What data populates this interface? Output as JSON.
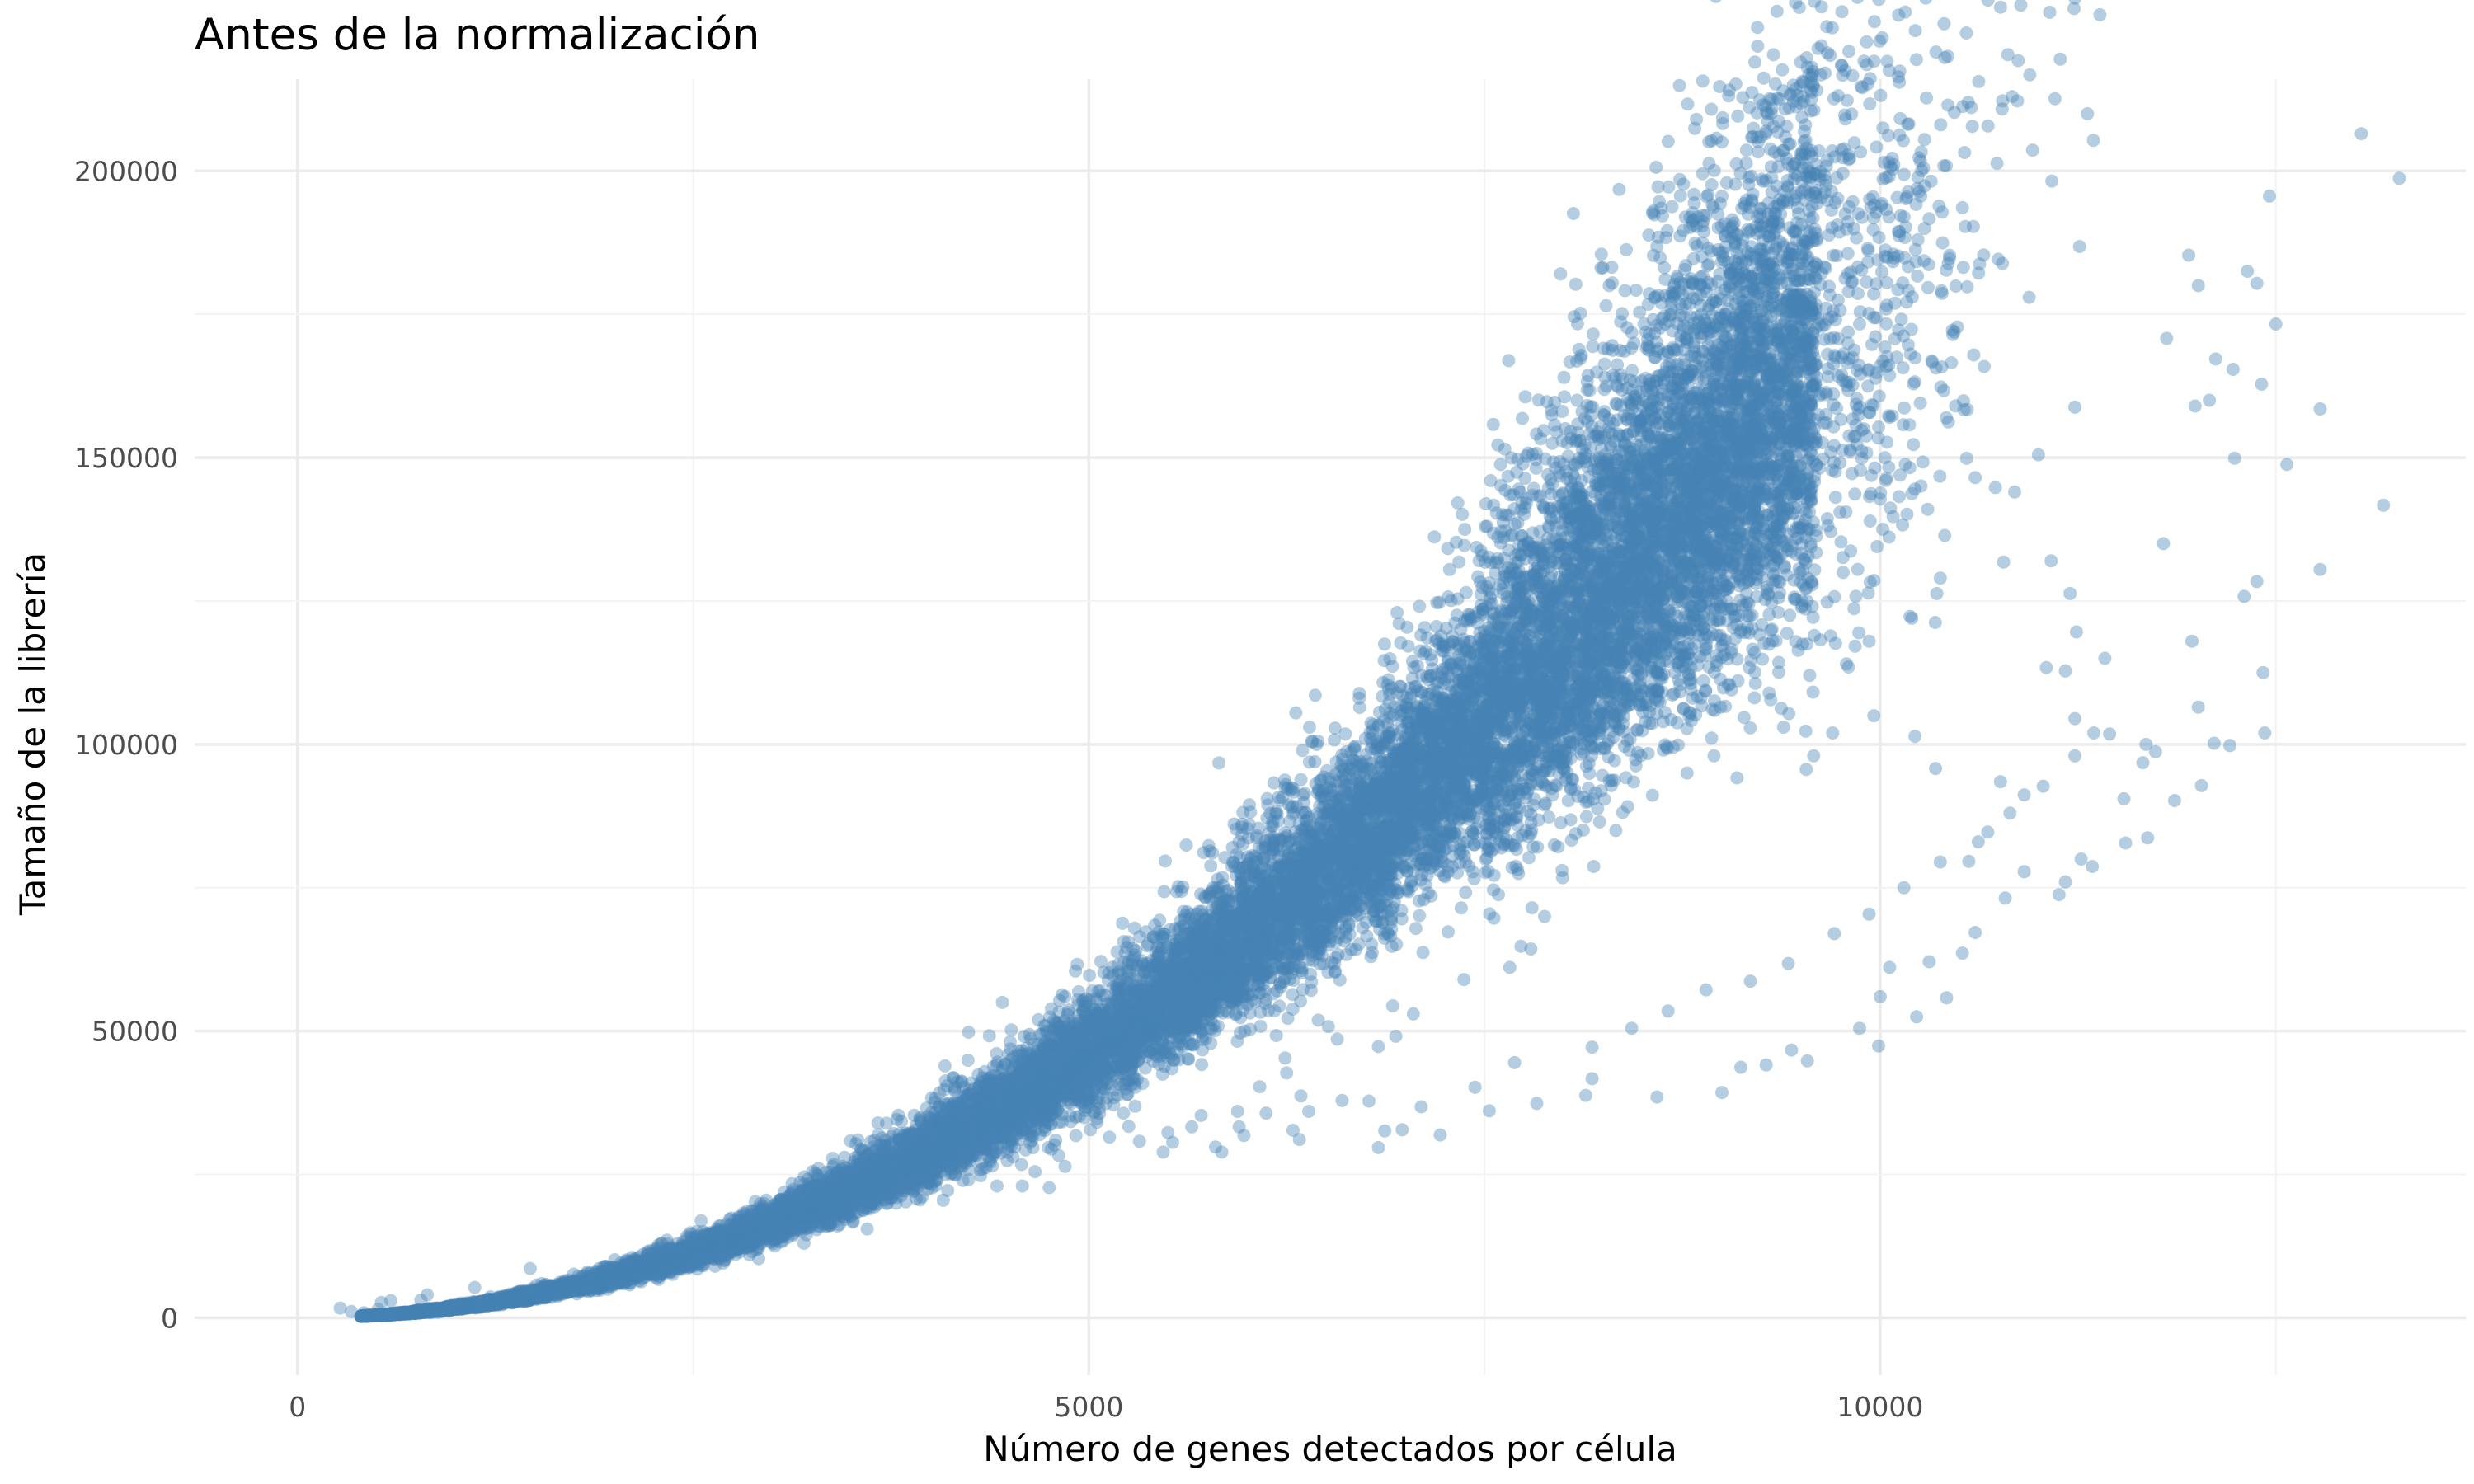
{
  "chart_data": {
    "type": "scatter",
    "title": "Antes de la normalización",
    "xlabel": "Número de genes detectados por célula",
    "ylabel": "Tamaño de la librería",
    "xlim": [
      -650,
      13700
    ],
    "ylim": [
      -10000,
      216000
    ],
    "x_ticks": [
      0,
      5000,
      10000
    ],
    "x_tick_labels": [
      "0",
      "5000",
      "10000"
    ],
    "y_ticks": [
      0,
      50000,
      100000,
      150000,
      200000
    ],
    "y_tick_labels": [
      "0",
      "50000",
      "100000",
      "150000",
      "200000"
    ],
    "grid": true,
    "legend": "none",
    "point_color": "#4682b4",
    "point_alpha": 0.4,
    "trend_model": "y ≈ 0.00155 · x^2.02",
    "bulk_points": 20000,
    "points": [
      [
        13040,
        206500
      ],
      [
        13280,
        198700
      ],
      [
        12460,
        195600
      ],
      [
        12320,
        182500
      ],
      [
        12380,
        180400
      ],
      [
        11950,
        185300
      ],
      [
        12010,
        180000
      ],
      [
        12500,
        173300
      ],
      [
        12410,
        162800
      ],
      [
        11810,
        170800
      ],
      [
        12120,
        167200
      ],
      [
        12230,
        165400
      ],
      [
        12780,
        158500
      ],
      [
        12080,
        160000
      ],
      [
        11990,
        159000
      ],
      [
        12240,
        149900
      ],
      [
        12570,
        148800
      ],
      [
        13180,
        141700
      ],
      [
        12780,
        130500
      ],
      [
        11790,
        135000
      ],
      [
        11970,
        118000
      ],
      [
        12380,
        128400
      ],
      [
        12300,
        125800
      ],
      [
        12420,
        112500
      ],
      [
        12010,
        106500
      ],
      [
        12210,
        99800
      ],
      [
        12430,
        102000
      ],
      [
        12110,
        100200
      ],
      [
        12030,
        92800
      ],
      [
        11230,
        158800
      ],
      [
        10550,
        158400
      ],
      [
        11000,
        150500
      ],
      [
        10600,
        146500
      ],
      [
        10300,
        141000
      ],
      [
        10040,
        146400
      ],
      [
        10120,
        143200
      ],
      [
        10850,
        144000
      ],
      [
        11080,
        132000
      ],
      [
        11200,
        126300
      ],
      [
        10780,
        131800
      ],
      [
        11240,
        119600
      ],
      [
        11170,
        112800
      ],
      [
        11420,
        115000
      ],
      [
        11050,
        113400
      ],
      [
        11230,
        104500
      ],
      [
        11350,
        102000
      ],
      [
        11680,
        100000
      ],
      [
        11740,
        98700
      ],
      [
        11660,
        96800
      ],
      [
        11690,
        83700
      ],
      [
        11540,
        90500
      ],
      [
        11860,
        90200
      ],
      [
        11270,
        80000
      ],
      [
        11550,
        82800
      ],
      [
        11170,
        76000
      ],
      [
        11340,
        78700
      ],
      [
        10380,
        129000
      ],
      [
        10200,
        122000
      ],
      [
        9930,
        118000
      ],
      [
        9800,
        113500
      ],
      [
        8750,
        119800
      ],
      [
        8790,
        112300
      ],
      [
        8990,
        106500
      ],
      [
        9140,
        104700
      ],
      [
        9390,
        103000
      ],
      [
        9580,
        98000
      ],
      [
        9700,
        102000
      ],
      [
        8630,
        99000
      ],
      [
        8950,
        98000
      ],
      [
        8780,
        95000
      ],
      [
        9960,
        105000
      ],
      [
        10220,
        101400
      ],
      [
        10350,
        95800
      ],
      [
        10760,
        93500
      ],
      [
        10910,
        91200
      ],
      [
        10680,
        84700
      ],
      [
        10560,
        79600
      ],
      [
        10910,
        77800
      ],
      [
        11130,
        73800
      ],
      [
        10790,
        73200
      ],
      [
        10600,
        67200
      ],
      [
        10520,
        63600
      ],
      [
        10310,
        62100
      ],
      [
        10060,
        61100
      ],
      [
        10000,
        56000
      ],
      [
        10420,
        55800
      ],
      [
        10230,
        52500
      ],
      [
        9990,
        47400
      ],
      [
        9870,
        50500
      ],
      [
        9440,
        46700
      ],
      [
        9540,
        44800
      ],
      [
        9120,
        43700
      ],
      [
        9280,
        44100
      ],
      [
        8180,
        41700
      ],
      [
        9000,
        39300
      ],
      [
        8590,
        38500
      ],
      [
        8140,
        38800
      ],
      [
        7830,
        37400
      ],
      [
        7530,
        36100
      ],
      [
        7220,
        31900
      ],
      [
        6980,
        32800
      ],
      [
        6830,
        29700
      ],
      [
        7990,
        78000
      ],
      [
        8190,
        78700
      ],
      [
        7270,
        67300
      ],
      [
        7560,
        69700
      ],
      [
        7800,
        71500
      ],
      [
        7880,
        70000
      ],
      [
        7370,
        59000
      ],
      [
        7730,
        64800
      ],
      [
        7660,
        61100
      ],
      [
        7050,
        53000
      ],
      [
        6920,
        54400
      ],
      [
        6450,
        51900
      ],
      [
        6570,
        48600
      ],
      [
        6940,
        49100
      ],
      [
        6830,
        47300
      ],
      [
        6240,
        45300
      ],
      [
        6250,
        42700
      ],
      [
        6340,
        38700
      ],
      [
        6080,
        40300
      ],
      [
        5940,
        36000
      ],
      [
        5710,
        35300
      ],
      [
        5650,
        33300
      ],
      [
        5500,
        32300
      ],
      [
        5950,
        33300
      ],
      [
        6120,
        35700
      ],
      [
        6390,
        36000
      ],
      [
        6770,
        37800
      ],
      [
        5980,
        31800
      ],
      [
        5800,
        29800
      ],
      [
        6330,
        31100
      ],
      [
        6870,
        32600
      ],
      [
        4660,
        40000
      ],
      [
        5010,
        32800
      ],
      [
        4810,
        28300
      ],
      [
        5130,
        31500
      ],
      [
        5320,
        30800
      ],
      [
        5530,
        30600
      ],
      [
        4420,
        23000
      ],
      [
        4660,
        25500
      ],
      [
        4580,
        23000
      ],
      [
        4330,
        26000
      ],
      [
        4850,
        26400
      ],
      [
        3980,
        22400
      ],
      [
        4080,
        20500
      ],
      [
        3660,
        19800
      ],
      [
        3480,
        18300
      ],
      [
        3290,
        16000
      ],
      [
        3110,
        16400
      ],
      [
        3010,
        15100
      ],
      [
        2840,
        13600
      ],
      [
        2560,
        11500
      ],
      [
        1470,
        8600
      ],
      [
        1830,
        7700
      ],
      [
        2060,
        8900
      ],
      [
        1120,
        5300
      ],
      [
        820,
        4000
      ],
      [
        590,
        3000
      ],
      [
        530,
        2700
      ],
      [
        780,
        3100
      ],
      [
        270,
        1700
      ],
      [
        340,
        1100
      ],
      [
        420,
        900
      ],
      [
        510,
        1500
      ],
      [
        2300,
        13000
      ],
      [
        2700,
        12500
      ],
      [
        3200,
        13000
      ],
      [
        3600,
        15500
      ],
      [
        4240,
        24100
      ],
      [
        4750,
        22700
      ],
      [
        5470,
        28900
      ],
      [
        5840,
        28900
      ],
      [
        6290,
        32700
      ],
      [
        6600,
        37900
      ],
      [
        7100,
        36800
      ],
      [
        7440,
        40200
      ],
      [
        7690,
        44500
      ],
      [
        8180,
        47200
      ],
      [
        8430,
        50500
      ],
      [
        8660,
        53500
      ],
      [
        8900,
        57200
      ],
      [
        9180,
        58700
      ],
      [
        9420,
        61800
      ],
      [
        9710,
        67000
      ],
      [
        9930,
        70400
      ],
      [
        10150,
        75000
      ],
      [
        10380,
        79500
      ],
      [
        10620,
        83000
      ],
      [
        10820,
        88000
      ],
      [
        11030,
        92700
      ],
      [
        11230,
        98000
      ],
      [
        11450,
        101800
      ]
    ]
  }
}
